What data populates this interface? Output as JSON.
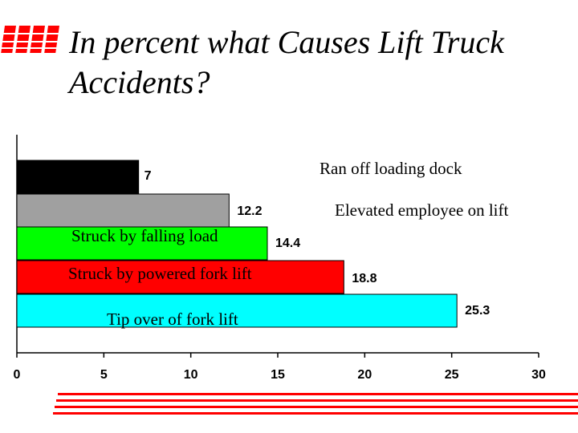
{
  "title": "In percent what Causes Lift Truck Accidents?",
  "colors": {
    "accent": "#ff0000"
  },
  "chart_data": {
    "type": "bar",
    "orientation": "horizontal",
    "categories": [
      "Ran off loading dock",
      "Elevated employee on lift",
      "Struck by falling load",
      "Struck by powered fork lift",
      "Tip over of fork lift"
    ],
    "values": [
      7,
      12.2,
      14.4,
      18.8,
      25.3
    ],
    "value_labels": [
      "7",
      "12.2",
      "14.4",
      "18.8",
      "25.3"
    ],
    "colors": [
      "#000000",
      "#a0a0a0",
      "#00ff00",
      "#ff0000",
      "#00ffff"
    ],
    "x_ticks": [
      "0",
      "5",
      "10",
      "15",
      "20",
      "25",
      "30"
    ],
    "xlim": [
      0,
      30
    ],
    "grid": false,
    "legend": "none"
  }
}
